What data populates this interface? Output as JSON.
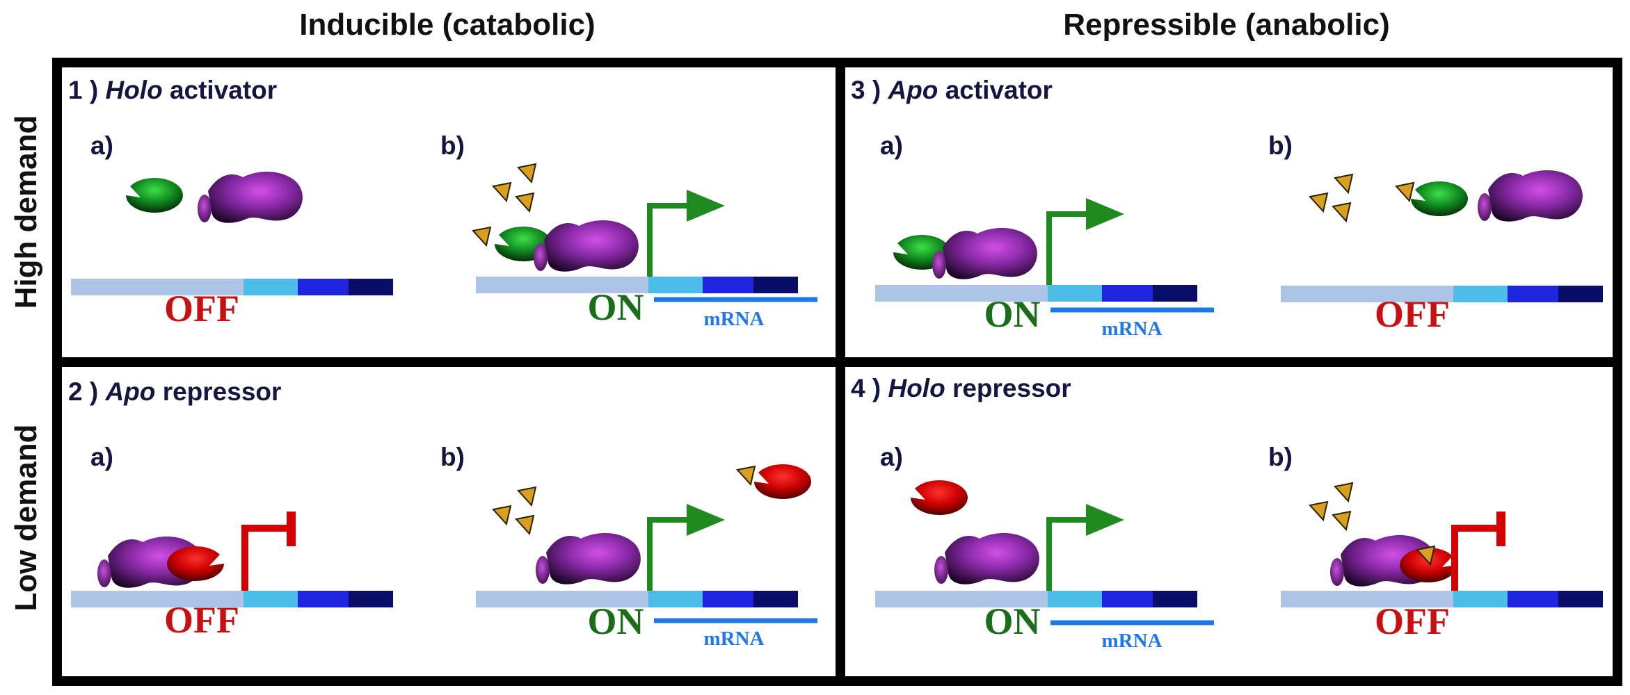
{
  "columns": [
    "Inducible (catabolic)",
    "Repressible (anabolic)"
  ],
  "rows": [
    "High demand",
    "Low demand"
  ],
  "panels": [
    {
      "num": "1 )",
      "title_italic": "Holo",
      "title_rest": "activator",
      "sub_a": "a)",
      "sub_b": "b)",
      "state_a": "OFF",
      "state_b": "ON",
      "mrna_b": "mRNA"
    },
    {
      "num": "3 )",
      "title_italic": "Apo",
      "title_rest": "activator",
      "sub_a": "a)",
      "sub_b": "b)",
      "state_a": "ON",
      "mrna_a": "mRNA",
      "state_b": "OFF"
    },
    {
      "num": "2 )",
      "title_italic": "Apo",
      "title_rest": "repressor",
      "sub_a": "a)",
      "sub_b": "b)",
      "state_a": "OFF",
      "state_b": "ON",
      "mrna_b": "mRNA"
    },
    {
      "num": "4 )",
      "title_italic": "Holo",
      "title_rest": "repressor",
      "sub_a": "a)",
      "sub_b": "b)",
      "state_a": "ON",
      "mrna_a": "mRNA",
      "state_b": "OFF"
    }
  ],
  "colors": {
    "activator": "#1f8a1f",
    "repressor": "#d40000",
    "polymerase": "#7a1f9a",
    "ligand": "#d9a020",
    "on_text": "#1a6e1a",
    "off_text": "#c81010",
    "mrna": "#1e78e6",
    "dna_segments": [
      "#aec4e6",
      "#4cbde9",
      "#1f24e0",
      "#0a0d66"
    ]
  }
}
